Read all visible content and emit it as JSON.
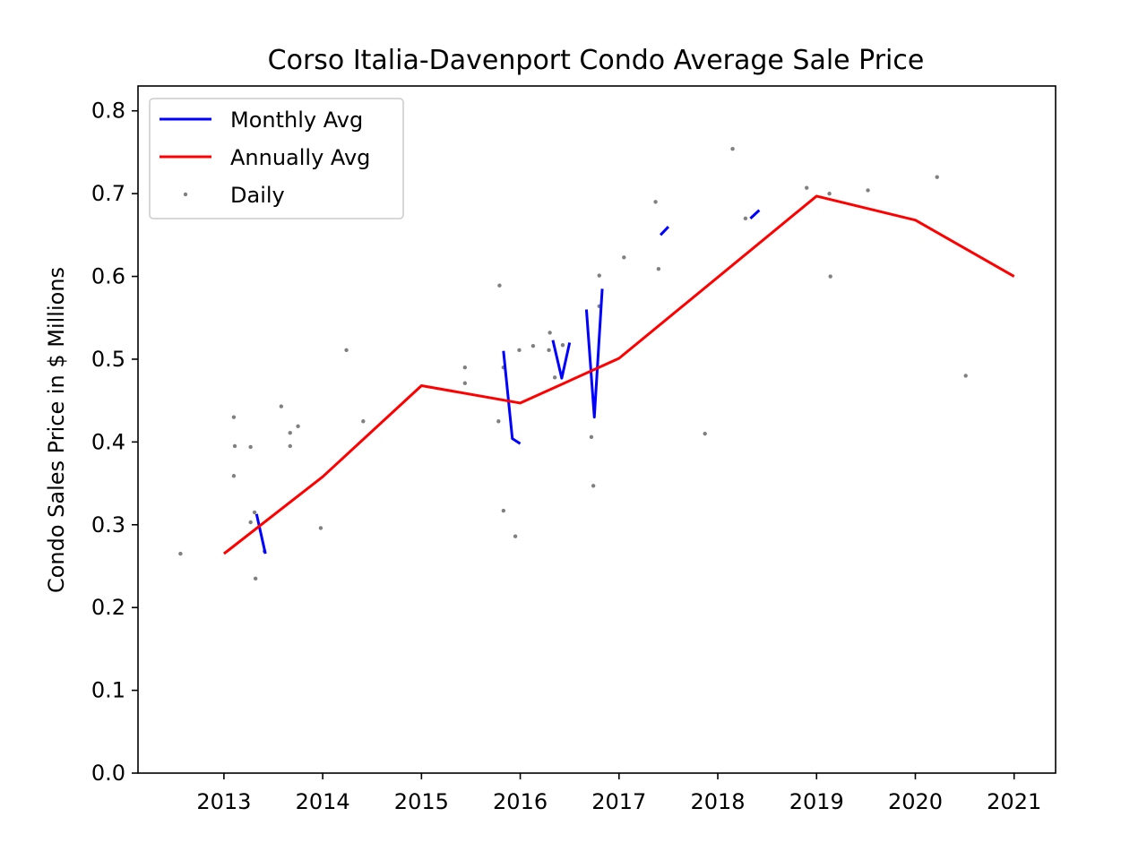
{
  "chart_data": {
    "type": "line",
    "title": "Corso Italia-Davenport Condo Average Sale Price",
    "xlabel": "",
    "ylabel": "Condo Sales Price in $ Millions",
    "xlim": [
      2012.13,
      2021.42
    ],
    "ylim": [
      0.0,
      0.83
    ],
    "x_ticks": [
      2013,
      2014,
      2015,
      2016,
      2017,
      2018,
      2019,
      2020,
      2021
    ],
    "x_tick_labels": [
      "2013",
      "2014",
      "2015",
      "2016",
      "2017",
      "2018",
      "2019",
      "2020",
      "2021"
    ],
    "y_ticks": [
      0.0,
      0.1,
      0.2,
      0.3,
      0.4,
      0.5,
      0.6,
      0.7,
      0.8
    ],
    "y_tick_labels": [
      "0.0",
      "0.1",
      "0.2",
      "0.3",
      "0.4",
      "0.5",
      "0.6",
      "0.7",
      "0.8"
    ],
    "legend_position": "top-left",
    "legend": [
      {
        "label": "Monthly Avg",
        "kind": "line",
        "color": "#0000ff"
      },
      {
        "label": "Annually Avg",
        "kind": "line",
        "color": "#ff0000"
      },
      {
        "label": "Daily",
        "kind": "point",
        "color": "#808080"
      }
    ],
    "series": [
      {
        "name": "Monthly Avg",
        "kind": "line",
        "color": "#0000ff",
        "segments": [
          [
            [
              2013.33,
              0.313
            ],
            [
              2013.42,
              0.265
            ]
          ],
          [
            [
              2015.83,
              0.51
            ],
            [
              2015.92,
              0.404
            ],
            [
              2016.0,
              0.398
            ]
          ],
          [
            [
              2016.33,
              0.523
            ],
            [
              2016.42,
              0.477
            ],
            [
              2016.5,
              0.52
            ]
          ],
          [
            [
              2016.67,
              0.56
            ],
            [
              2016.75,
              0.43
            ],
            [
              2016.83,
              0.585
            ]
          ],
          [
            [
              2017.42,
              0.65
            ],
            [
              2017.5,
              0.66
            ]
          ],
          [
            [
              2018.33,
              0.67
            ],
            [
              2018.42,
              0.68
            ]
          ]
        ]
      },
      {
        "name": "Annually Avg",
        "kind": "line",
        "color": "#ff0000",
        "x": [
          2013,
          2014,
          2015,
          2016,
          2017,
          2019,
          2020,
          2021
        ],
        "y": [
          0.265,
          0.358,
          0.468,
          0.447,
          0.501,
          0.697,
          0.668,
          0.6
        ]
      },
      {
        "name": "Daily",
        "kind": "scatter",
        "color": "#808080",
        "points": [
          [
            2012.56,
            0.265
          ],
          [
            2013.1,
            0.43
          ],
          [
            2013.11,
            0.395
          ],
          [
            2013.1,
            0.359
          ],
          [
            2013.27,
            0.394
          ],
          [
            2013.27,
            0.303
          ],
          [
            2013.31,
            0.315
          ],
          [
            2013.32,
            0.235
          ],
          [
            2013.41,
            0.268
          ],
          [
            2013.58,
            0.443
          ],
          [
            2013.67,
            0.411
          ],
          [
            2013.67,
            0.395
          ],
          [
            2013.75,
            0.419
          ],
          [
            2013.98,
            0.296
          ],
          [
            2014.24,
            0.511
          ],
          [
            2014.41,
            0.425
          ],
          [
            2015.44,
            0.49
          ],
          [
            2015.44,
            0.471
          ],
          [
            2015.79,
            0.589
          ],
          [
            2015.78,
            0.425
          ],
          [
            2015.83,
            0.317
          ],
          [
            2015.83,
            0.49
          ],
          [
            2015.95,
            0.286
          ],
          [
            2015.99,
            0.511
          ],
          [
            2016.13,
            0.516
          ],
          [
            2016.3,
            0.532
          ],
          [
            2016.29,
            0.511
          ],
          [
            2016.35,
            0.478
          ],
          [
            2016.43,
            0.517
          ],
          [
            2016.72,
            0.406
          ],
          [
            2016.74,
            0.347
          ],
          [
            2016.8,
            0.601
          ],
          [
            2016.8,
            0.564
          ],
          [
            2017.05,
            0.623
          ],
          [
            2017.37,
            0.69
          ],
          [
            2017.4,
            0.609
          ],
          [
            2017.87,
            0.41
          ],
          [
            2018.15,
            0.754
          ],
          [
            2018.28,
            0.67
          ],
          [
            2018.9,
            0.707
          ],
          [
            2019.13,
            0.7
          ],
          [
            2019.14,
            0.6
          ],
          [
            2019.52,
            0.704
          ],
          [
            2020.22,
            0.72
          ],
          [
            2020.51,
            0.48
          ]
        ]
      }
    ]
  }
}
